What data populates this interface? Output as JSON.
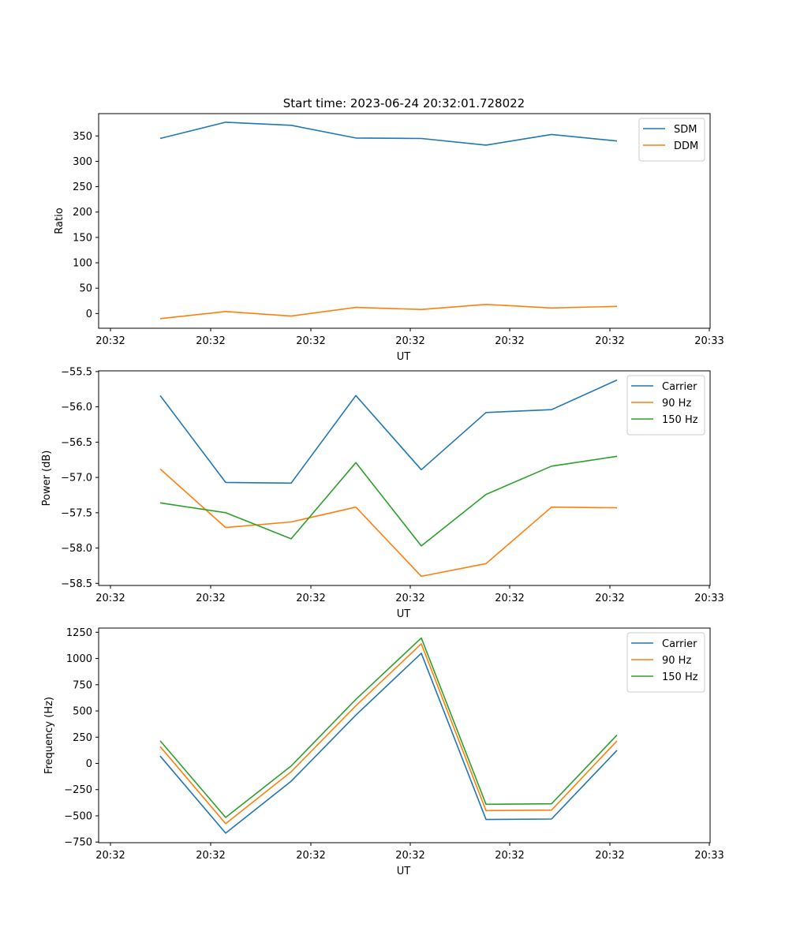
{
  "title": "Start time: 2023-06-24 20:32:01.728022",
  "colors": {
    "blue": "#1f77b4",
    "orange": "#ff7f0e",
    "green": "#2ca02c"
  },
  "chart_data": [
    {
      "type": "line",
      "xlabel": "UT",
      "ylabel": "Ratio",
      "x_tick_labels": [
        "20:32",
        "20:32",
        "20:32",
        "20:32",
        "20:32",
        "20:32",
        "20:32"
      ],
      "x_last_tick_label": "20:33",
      "yticks": [
        0,
        50,
        100,
        150,
        200,
        250,
        300,
        350
      ],
      "ylim": [
        -29,
        394
      ],
      "legend": "top-right",
      "series": [
        {
          "name": "SDM",
          "color": "#1f77b4",
          "values": [
            345,
            377,
            371,
            346,
            345,
            332,
            353,
            340
          ]
        },
        {
          "name": "DDM",
          "color": "#ff7f0e",
          "values": [
            -10,
            4,
            -5,
            12,
            8,
            18,
            11,
            14
          ]
        }
      ]
    },
    {
      "type": "line",
      "xlabel": "UT",
      "ylabel": "Power (dB)",
      "x_tick_labels": [
        "20:32",
        "20:32",
        "20:32",
        "20:32",
        "20:32",
        "20:32",
        "20:32"
      ],
      "x_last_tick_label": "20:33",
      "yticks": [
        -58.5,
        -58.0,
        -57.5,
        -57.0,
        -56.5,
        -56.0,
        -55.5
      ],
      "ytick_labels": [
        "−58.5",
        "−58.0",
        "−57.5",
        "−57.0",
        "−56.5",
        "−56.0",
        "−55.5"
      ],
      "ylim": [
        -58.53,
        -55.49
      ],
      "legend": "top-right",
      "series": [
        {
          "name": "Carrier",
          "color": "#1f77b4",
          "values": [
            -55.84,
            -57.07,
            -57.08,
            -55.84,
            -56.89,
            -56.08,
            -56.04,
            -55.62
          ]
        },
        {
          "name": "90 Hz",
          "color": "#ff7f0e",
          "values": [
            -56.88,
            -57.71,
            -57.63,
            -57.42,
            -58.4,
            -58.22,
            -57.42,
            -57.43
          ]
        },
        {
          "name": "150 Hz",
          "color": "#2ca02c",
          "values": [
            -57.36,
            -57.5,
            -57.87,
            -56.79,
            -57.97,
            -57.24,
            -56.84,
            -56.7
          ]
        }
      ]
    },
    {
      "type": "line",
      "xlabel": "UT",
      "ylabel": "Frequency (Hz)",
      "x_tick_labels": [
        "20:32",
        "20:32",
        "20:32",
        "20:32",
        "20:32",
        "20:32",
        "20:32"
      ],
      "x_last_tick_label": "20:33",
      "yticks": [
        -750,
        -500,
        -250,
        0,
        250,
        500,
        750,
        1000,
        1250
      ],
      "ytick_labels": [
        "−750",
        "−500",
        "−250",
        "0",
        "250",
        "500",
        "750",
        "1000",
        "1250"
      ],
      "ylim": [
        -756,
        1290
      ],
      "legend": "top-right",
      "series": [
        {
          "name": "Carrier",
          "color": "#1f77b4",
          "values": [
            70,
            -665,
            -170,
            460,
            1050,
            -535,
            -530,
            125
          ]
        },
        {
          "name": "90 Hz",
          "color": "#ff7f0e",
          "values": [
            160,
            -575,
            -80,
            550,
            1140,
            -450,
            -445,
            215
          ]
        },
        {
          "name": "150 Hz",
          "color": "#2ca02c",
          "values": [
            215,
            -515,
            -25,
            610,
            1195,
            -390,
            -385,
            270
          ]
        }
      ]
    }
  ]
}
